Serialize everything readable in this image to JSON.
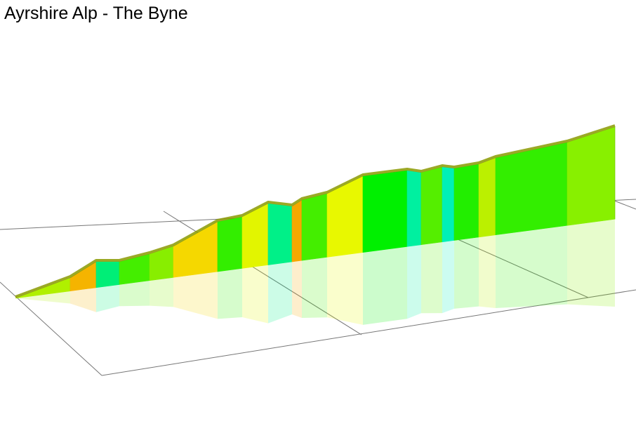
{
  "title": "Ayrshire Alp - The Byne"
}
